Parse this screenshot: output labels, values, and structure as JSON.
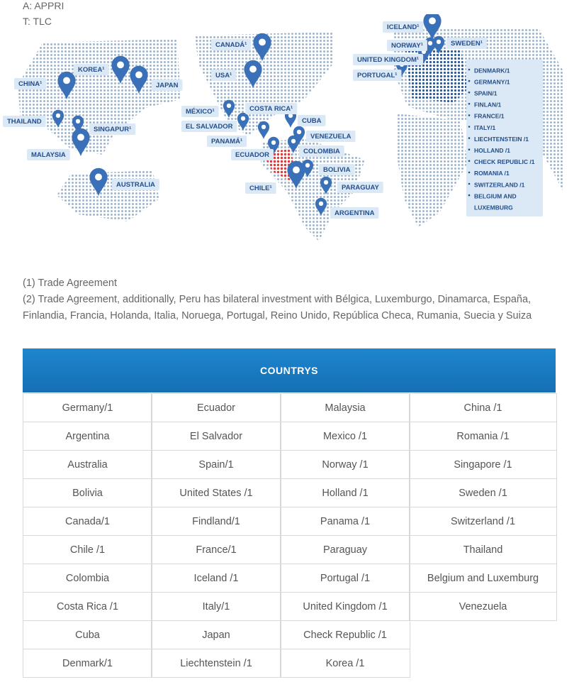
{
  "legend": [
    "A: APPRI",
    "T: TLC"
  ],
  "map": {
    "labels": [
      "KOREA¹",
      "JAPAN",
      "CHINA¹",
      "THAILAND",
      "SINGAPUR¹",
      "MALAYSIA",
      "AUSTRALIA",
      "CANADÁ¹",
      "USA¹",
      "MÉXICO¹",
      "COSTA RICA¹",
      "EL SALVADOR",
      "CUBA",
      "PANAMÁ¹",
      "VENEZUELA",
      "ECUADOR",
      "COLOMBIA",
      "BOLIVIA",
      "CHILE¹",
      "PARAGUAY",
      "ARGENTINA",
      "ICELAND¹",
      "NORWAY¹",
      "SWEDEN¹",
      "UNITED KINGDOM¹",
      "PORTUGAL¹"
    ],
    "europe_list": [
      "DENMARK/1",
      "GERMANY/1",
      "SPAIN/1",
      "FINLAN/1",
      "FRANCE/1",
      "ITALY/1",
      "LIECHTENSTEIN /1",
      "HOLLAND /1",
      "CHECK REPUBLIC /1",
      "ROMANIA /1",
      "SWITZERLAND  /1",
      "BELGIUM AND",
      "LUXEMBURG"
    ]
  },
  "notes": [
    "(1) Trade Agreement",
    "(2) Trade Agreement, additionally, Peru has bilateral investment with Bélgica, Luxemburgo, Dinamarca, España, Finlandia, Francia, Holanda, Italia, Noruega, Portugal, Reino Unido, República Checa, Rumania, Suecia y Suiza"
  ],
  "table": {
    "header": "COUNTRYS",
    "columns": [
      [
        "Germany/1",
        "Argentina",
        "Australia",
        "Bolivia",
        "Canada/1",
        "Chile /1",
        "Colombia",
        "Costa Rica /1",
        "Cuba",
        "Denmark/1"
      ],
      [
        "Ecuador",
        "El Salvador",
        "Spain/1",
        "United States /1",
        "Findland/1",
        "France/1",
        "Iceland /1",
        "Italy/1",
        "Japan",
        "Liechtenstein /1"
      ],
      [
        "Malaysia",
        "Mexico /1",
        "Norway /1",
        "Holland /1",
        "Panama /1",
        "Paraguay",
        "Portugal /1",
        "United Kingdom /1",
        "Check Republic /1",
        "Korea /1"
      ],
      [
        "China /1",
        "Romania /1",
        "Singapore /1",
        "Sweden /1",
        "Switzerland /1",
        "Thailand",
        "Belgium and Luxemburg",
        "Venezuela"
      ]
    ]
  }
}
